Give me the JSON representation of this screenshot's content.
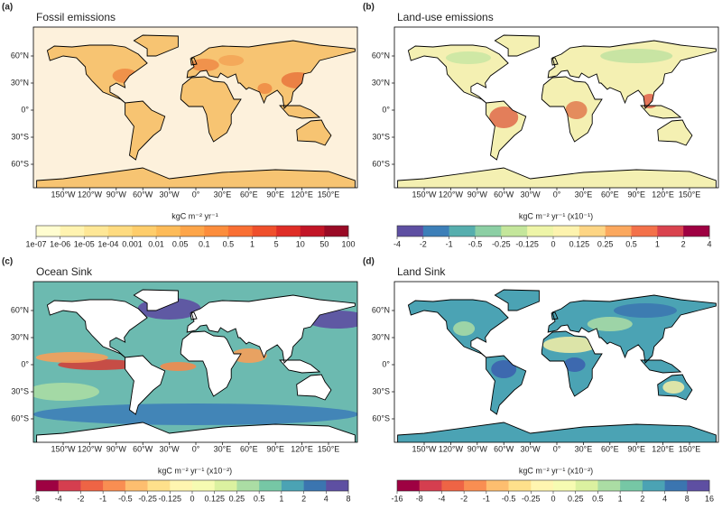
{
  "lat_ticks": [
    "60°N",
    "30°N",
    "0°",
    "30°S",
    "60°S"
  ],
  "lon_ticks": [
    "150°W",
    "120°W",
    "90°W",
    "60°W",
    "30°W",
    "0°",
    "30°E",
    "60°E",
    "90°E",
    "120°E",
    "150°E"
  ],
  "panels": [
    {
      "label": "(a)",
      "title": "Fossil emissions",
      "colorbar": {
        "unit": "kgC m⁻² yr⁻¹",
        "ticks": [
          "1e-07",
          "1e-06",
          "1e-05",
          "1e-04",
          "0.001",
          "0.01",
          "0.05",
          "0.1",
          "0.5",
          "1",
          "5",
          "10",
          "50",
          "100"
        ],
        "colors": [
          "#fffdd0",
          "#fff3b0",
          "#fee796",
          "#fedb80",
          "#fecd6b",
          "#fdbb58",
          "#fda549",
          "#fc8d3c",
          "#f96f33",
          "#ef4f2b",
          "#df2d26",
          "#c21526",
          "#990a25"
        ]
      }
    },
    {
      "label": "(b)",
      "title": "Land-use emissions",
      "colorbar": {
        "unit": "kgC m⁻² yr⁻¹ (x10⁻¹)",
        "ticks": [
          "-4",
          "-2",
          "-1",
          "-0.5",
          "-0.25",
          "-0.125",
          "0",
          "0.125",
          "0.25",
          "0.5",
          "1",
          "2",
          "4"
        ],
        "colors": [
          "#5e4fa2",
          "#3d7fb8",
          "#56aeae",
          "#8ccfa4",
          "#c4e69b",
          "#eef5a8",
          "#fdf3ae",
          "#fdd584",
          "#fba85e",
          "#f3714a",
          "#d9434e",
          "#9e0142"
        ]
      }
    },
    {
      "label": "(c)",
      "title": "Ocean Sink",
      "colorbar": {
        "unit": "kgC m⁻² yr⁻¹ (x10⁻²)",
        "ticks": [
          "-8",
          "-4",
          "-2",
          "-1",
          "-0.5",
          "-0.25",
          "-0.125",
          "0",
          "0.125",
          "0.25",
          "0.5",
          "1",
          "2",
          "4",
          "8"
        ],
        "colors": [
          "#9e0142",
          "#d53e4f",
          "#ee6445",
          "#f98e52",
          "#fdbe6f",
          "#fee08b",
          "#fff5b0",
          "#f6fbb2",
          "#dbf1a0",
          "#abdda4",
          "#76c7a5",
          "#4ba3b4",
          "#3b75b0",
          "#5e4fa2"
        ]
      }
    },
    {
      "label": "(d)",
      "title": "Land Sink",
      "colorbar": {
        "unit": "kgC m⁻² yr⁻¹ (x10⁻²)",
        "ticks": [
          "-16",
          "-8",
          "-4",
          "-2",
          "-1",
          "-0.5",
          "-0.25",
          "0",
          "0.25",
          "0.5",
          "1",
          "2",
          "4",
          "8",
          "16"
        ],
        "colors": [
          "#9e0142",
          "#d53e4f",
          "#ee6445",
          "#f98e52",
          "#fdbe6f",
          "#fee08b",
          "#fff5b0",
          "#f6fbb2",
          "#dbf1a0",
          "#abdda4",
          "#76c7a5",
          "#4ba3b4",
          "#3b75b0",
          "#5e4fa2"
        ]
      }
    }
  ]
}
